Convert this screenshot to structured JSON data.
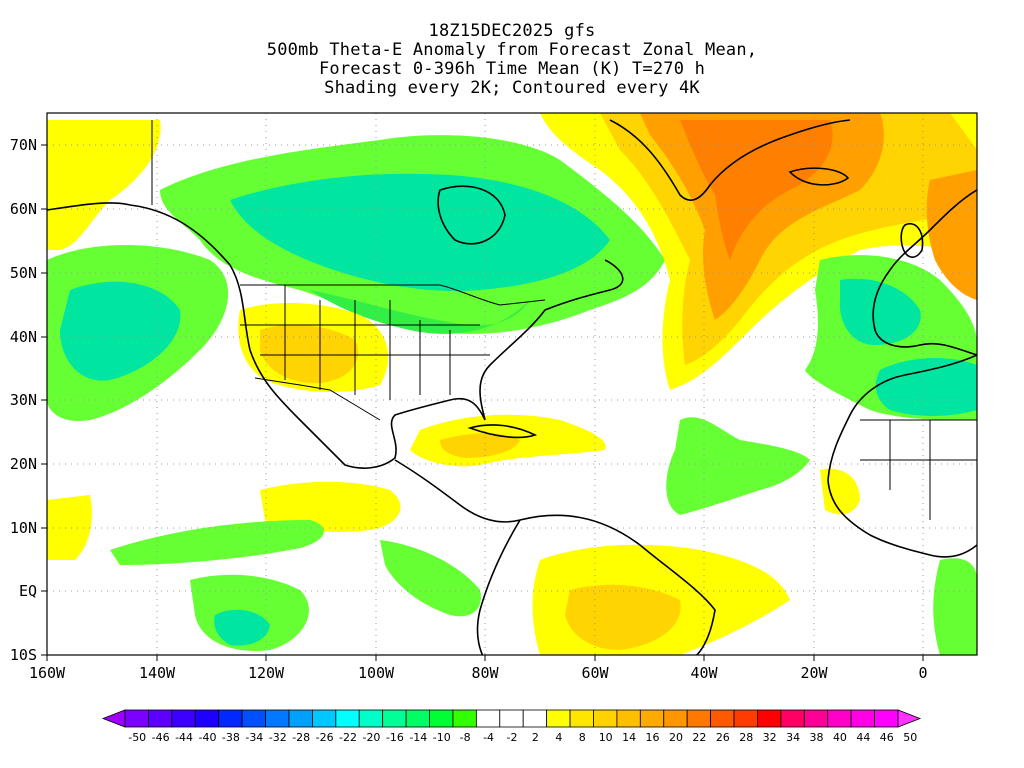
{
  "title": {
    "line1": "18Z15DEC2025 gfs",
    "line2": "500mb Theta-E Anomaly from Forecast Zonal Mean,",
    "line3": "Forecast 0-396h Time Mean (K) T=270 h",
    "line4": "Shading every 2K; Contoured every 4K"
  },
  "map": {
    "lon_range": [
      -160,
      10
    ],
    "lat_range": [
      -10,
      75
    ],
    "y_ticks": [
      "70N",
      "60N",
      "50N",
      "40N",
      "30N",
      "20N",
      "10N",
      "EQ",
      "10S"
    ],
    "x_ticks": [
      "160W",
      "140W",
      "120W",
      "100W",
      "80W",
      "60W",
      "40W",
      "20W",
      "0"
    ],
    "gridlines": "dotted"
  },
  "colorbar": {
    "labels": [
      "-50",
      "-46",
      "-44",
      "-40",
      "-38",
      "-34",
      "-32",
      "-28",
      "-26",
      "-22",
      "-20",
      "-16",
      "-14",
      "-10",
      "-8",
      "-4",
      "-2",
      "2",
      "4",
      "8",
      "10",
      "14",
      "16",
      "20",
      "22",
      "26",
      "28",
      "32",
      "34",
      "38",
      "40",
      "44",
      "46",
      "50"
    ],
    "colors": [
      "#a000ff",
      "#7c00ff",
      "#5e00ff",
      "#3c00ff",
      "#1e00ff",
      "#0028ff",
      "#0050ff",
      "#0078ff",
      "#00a0ff",
      "#00c8ff",
      "#00ffff",
      "#00ffc8",
      "#00ff96",
      "#00ff64",
      "#00ff32",
      "#32ff00",
      "#ffffff",
      "#ffffff",
      "#ffffff",
      "#ffff00",
      "#ffe600",
      "#ffd200",
      "#ffbe00",
      "#ffaa00",
      "#ff9600",
      "#ff7800",
      "#ff5a00",
      "#ff3c00",
      "#ff0000",
      "#ff0064",
      "#ff0096",
      "#ff00c8",
      "#ff00e6",
      "#ff00ff",
      "#ff32ff"
    ]
  },
  "colors": {
    "green_light": "#66ff33",
    "green": "#33ee44",
    "teal": "#00e6a0",
    "yellow": "#ffff00",
    "gold": "#ffd400",
    "orange": "#ffa000",
    "orange_dark": "#ff8000"
  }
}
